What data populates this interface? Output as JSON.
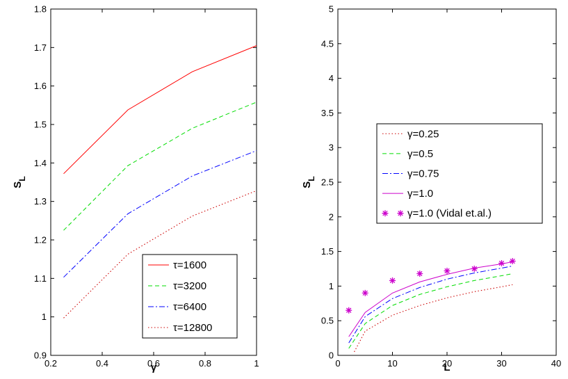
{
  "chart_data": [
    {
      "type": "line",
      "title": "",
      "xlabel": "γ",
      "ylabel": "S_L",
      "ylabel_main": "S",
      "ylabel_sub": "L",
      "xlim": [
        0.2,
        1.0
      ],
      "ylim": [
        0.9,
        1.8
      ],
      "xticks": [
        0.2,
        0.4,
        0.6,
        0.8,
        1.0
      ],
      "xtick_labels": [
        "0.2",
        "0.4",
        "0.6",
        "0.8",
        "1"
      ],
      "yticks": [
        0.9,
        1.0,
        1.1,
        1.2,
        1.3,
        1.4,
        1.5,
        1.6,
        1.7,
        1.8
      ],
      "ytick_labels": [
        "0.9",
        "1",
        "1.1",
        "1.2",
        "1.3",
        "1.4",
        "1.5",
        "1.6",
        "1.7",
        "1.8"
      ],
      "legend_position": "bottom-right",
      "x": [
        0.25,
        0.5,
        0.75,
        1.0
      ],
      "series": [
        {
          "name": "τ=1600",
          "values": [
            1.372,
            1.538,
            1.637,
            1.705
          ],
          "color": "#ff0000",
          "dash": "solid"
        },
        {
          "name": "τ=3200",
          "values": [
            1.225,
            1.393,
            1.49,
            1.558
          ],
          "color": "#00dd00",
          "dash": "dashed"
        },
        {
          "name": "τ=6400",
          "values": [
            1.103,
            1.268,
            1.366,
            1.432
          ],
          "color": "#0000ff",
          "dash": "dashdot"
        },
        {
          "name": "τ=12800",
          "values": [
            0.997,
            1.163,
            1.262,
            1.328
          ],
          "color": "#cc0000",
          "dash": "dotted"
        }
      ]
    },
    {
      "type": "line",
      "title": "",
      "xlabel": "L",
      "ylabel": "S_L",
      "ylabel_main": "S",
      "ylabel_sub": "L",
      "xlim": [
        0,
        40
      ],
      "ylim": [
        0,
        5
      ],
      "xticks": [
        0,
        10,
        20,
        30,
        40
      ],
      "xtick_labels": [
        "0",
        "10",
        "20",
        "30",
        "40"
      ],
      "yticks": [
        0,
        0.5,
        1,
        1.5,
        2,
        2.5,
        3,
        3.5,
        4,
        4.5,
        5
      ],
      "ytick_labels": [
        "0",
        "0.5",
        "1",
        "1.5",
        "2",
        "2.5",
        "3",
        "3.5",
        "4",
        "4.5",
        "5"
      ],
      "legend_position": "center",
      "series": [
        {
          "name": "γ=0.25",
          "x": [
            3,
            5,
            10,
            15,
            20,
            25,
            30,
            32
          ],
          "values": [
            0.05,
            0.35,
            0.58,
            0.72,
            0.83,
            0.92,
            0.99,
            1.02
          ],
          "color": "#cc0000",
          "dash": "dotted",
          "marker": "none"
        },
        {
          "name": "γ=0.5",
          "x": [
            2,
            5,
            10,
            15,
            20,
            25,
            30,
            32
          ],
          "values": [
            0.1,
            0.46,
            0.72,
            0.88,
            0.99,
            1.08,
            1.15,
            1.18
          ],
          "color": "#00dd00",
          "dash": "dashed",
          "marker": "none"
        },
        {
          "name": "γ=0.75",
          "x": [
            2,
            5,
            10,
            15,
            20,
            25,
            30,
            32
          ],
          "values": [
            0.18,
            0.56,
            0.82,
            0.98,
            1.1,
            1.19,
            1.26,
            1.29
          ],
          "color": "#0000ff",
          "dash": "dashdot",
          "marker": "none"
        },
        {
          "name": "γ=1.0",
          "x": [
            2,
            5,
            10,
            15,
            20,
            25,
            30,
            32
          ],
          "values": [
            0.27,
            0.62,
            0.9,
            1.06,
            1.17,
            1.26,
            1.32,
            1.35
          ],
          "color": "#cc00cc",
          "dash": "solid",
          "marker": "none"
        },
        {
          "name": "γ=1.0 (Vidal et.al.)",
          "x": [
            2,
            5,
            10,
            15,
            20,
            25,
            30,
            32
          ],
          "values": [
            0.65,
            0.9,
            1.08,
            1.18,
            1.22,
            1.25,
            1.33,
            1.36
          ],
          "color": "#cc00cc",
          "dash": "none",
          "marker": "star"
        }
      ]
    }
  ]
}
